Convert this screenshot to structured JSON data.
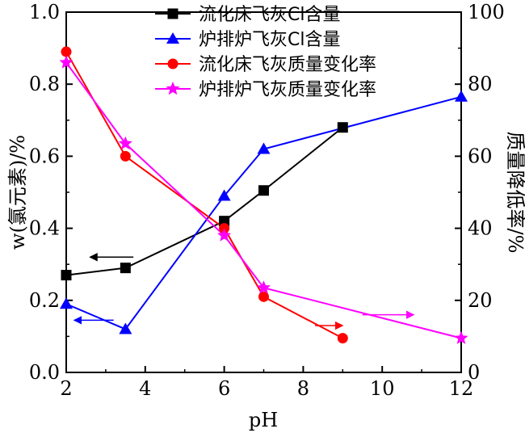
{
  "chart_data": {
    "type": "line",
    "xlabel": "pH",
    "ylabel_left": "w(氯元素)/%",
    "ylabel_right": "质量降低率/%",
    "xlim": [
      2,
      12
    ],
    "ylim_left": [
      0.0,
      1.0
    ],
    "ylim_right": [
      0,
      100
    ],
    "x_ticks": [
      "2",
      "4",
      "6",
      "8",
      "10",
      "12"
    ],
    "y_left_ticks": [
      "0.0",
      "0.2",
      "0.4",
      "0.6",
      "0.8",
      "1.0"
    ],
    "y_right_ticks": [
      "0",
      "20",
      "40",
      "60",
      "80",
      "100"
    ],
    "legend_position": "top-center",
    "series": [
      {
        "name": "流化床飞灰Cl含量",
        "axis": "left",
        "color": "#000000",
        "marker": "square",
        "x": [
          2,
          3.5,
          6,
          7,
          9
        ],
        "y": [
          0.27,
          0.29,
          0.42,
          0.505,
          0.68
        ]
      },
      {
        "name": "炉排炉飞灰Cl含量",
        "axis": "left",
        "color": "#0000ff",
        "marker": "triangle",
        "x": [
          2,
          3.5,
          6,
          7,
          12
        ],
        "y": [
          0.19,
          0.12,
          0.49,
          0.62,
          0.765
        ]
      },
      {
        "name": "流化床飞灰质量变化率",
        "axis": "right",
        "color": "#ff0000",
        "marker": "circle",
        "x": [
          2,
          3.5,
          6,
          7,
          9
        ],
        "y": [
          89,
          60,
          40,
          21,
          9.5
        ]
      },
      {
        "name": "炉排炉飞灰质量变化率",
        "axis": "right",
        "color": "#ff00ff",
        "marker": "star",
        "x": [
          2,
          3.5,
          6,
          7,
          12
        ],
        "y": [
          86,
          63.5,
          38,
          23.5,
          9.5
        ]
      }
    ],
    "arrows": [
      {
        "series": 0,
        "direction": "left",
        "from": [
          3.7,
          0.32
        ],
        "to": [
          2.6,
          0.32
        ]
      },
      {
        "series": 1,
        "direction": "left",
        "from": [
          3.2,
          0.145
        ],
        "to": [
          2.2,
          0.145
        ]
      },
      {
        "series": 2,
        "direction": "right",
        "from": [
          8.3,
          13
        ],
        "to": [
          9.0,
          13
        ]
      },
      {
        "series": 3,
        "direction": "right",
        "from": [
          9.5,
          16
        ],
        "to": [
          10.8,
          16
        ]
      }
    ]
  }
}
